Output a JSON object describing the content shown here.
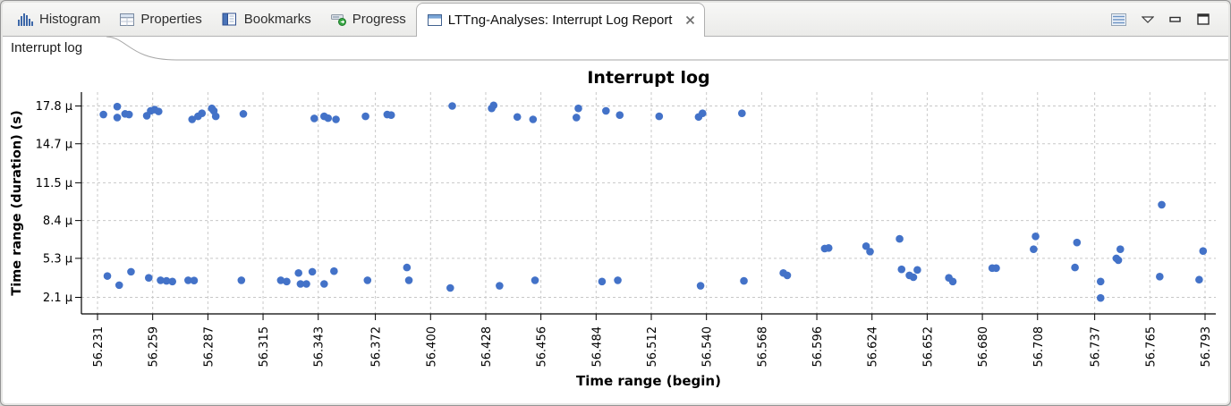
{
  "window": {
    "tabs": [
      {
        "label": "Histogram",
        "icon": "histogram-icon"
      },
      {
        "label": "Properties",
        "icon": "properties-icon"
      },
      {
        "label": "Bookmarks",
        "icon": "bookmarks-icon"
      },
      {
        "label": "Progress",
        "icon": "progress-icon"
      },
      {
        "label": "LTTng-Analyses: Interrupt Log Report",
        "icon": "window-icon",
        "active": true,
        "closable": true
      }
    ],
    "toolbar": {
      "icons": [
        "list-view-icon",
        "view-menu-icon",
        "minimize-icon",
        "maximize-icon"
      ]
    }
  },
  "subtabs": [
    {
      "label": "Interrupt log",
      "active": true
    }
  ],
  "chart_data": {
    "type": "scatter",
    "title": "Interrupt log",
    "xlabel": "Time range (begin)",
    "ylabel": "Time range (duration) (s)",
    "x_unit": "s",
    "y_unit": "µs",
    "xlim": [
      56.223,
      56.799
    ],
    "ylim_us": [
      0.74,
      18.94
    ],
    "grid": true,
    "legend": false,
    "colors": {
      "point": "#4372c8",
      "grid": "#c8c8c8",
      "axis": "#000000"
    },
    "x_ticks": [
      {
        "v": 56.231,
        "label": "56.231"
      },
      {
        "v": 56.259,
        "label": "56.259"
      },
      {
        "v": 56.287,
        "label": "56.287"
      },
      {
        "v": 56.315,
        "label": "56.315"
      },
      {
        "v": 56.343,
        "label": "56.343"
      },
      {
        "v": 56.372,
        "label": "56.372"
      },
      {
        "v": 56.4,
        "label": "56.400"
      },
      {
        "v": 56.428,
        "label": "56.428"
      },
      {
        "v": 56.456,
        "label": "56.456"
      },
      {
        "v": 56.484,
        "label": "56.484"
      },
      {
        "v": 56.512,
        "label": "56.512"
      },
      {
        "v": 56.54,
        "label": "56.540"
      },
      {
        "v": 56.568,
        "label": "56.568"
      },
      {
        "v": 56.596,
        "label": "56.596"
      },
      {
        "v": 56.624,
        "label": "56.624"
      },
      {
        "v": 56.652,
        "label": "56.652"
      },
      {
        "v": 56.68,
        "label": "56.680"
      },
      {
        "v": 56.708,
        "label": "56.708"
      },
      {
        "v": 56.737,
        "label": "56.737"
      },
      {
        "v": 56.765,
        "label": "56.765"
      },
      {
        "v": 56.793,
        "label": "56.793"
      }
    ],
    "y_ticks": [
      {
        "v": 2.1,
        "label": "2.1 µ"
      },
      {
        "v": 5.3,
        "label": "5.3 µ"
      },
      {
        "v": 8.4,
        "label": "8.4 µ"
      },
      {
        "v": 11.5,
        "label": "11.5 µ"
      },
      {
        "v": 14.7,
        "label": "14.7 µ"
      },
      {
        "v": 17.8,
        "label": "17.8 µ"
      }
    ],
    "points_us": [
      [
        56.234,
        17.1
      ],
      [
        56.241,
        17.75
      ],
      [
        56.241,
        16.85
      ],
      [
        56.245,
        17.15
      ],
      [
        56.247,
        17.1
      ],
      [
        56.256,
        17.0
      ],
      [
        56.258,
        17.4
      ],
      [
        56.26,
        17.5
      ],
      [
        56.262,
        17.35
      ],
      [
        56.279,
        16.7
      ],
      [
        56.282,
        16.95
      ],
      [
        56.284,
        17.2
      ],
      [
        56.289,
        17.6
      ],
      [
        56.29,
        17.4
      ],
      [
        56.291,
        16.95
      ],
      [
        56.305,
        17.15
      ],
      [
        56.341,
        16.78
      ],
      [
        56.346,
        16.95
      ],
      [
        56.348,
        16.8
      ],
      [
        56.352,
        16.7
      ],
      [
        56.367,
        16.95
      ],
      [
        56.378,
        17.1
      ],
      [
        56.38,
        17.05
      ],
      [
        56.411,
        17.8
      ],
      [
        56.431,
        17.6
      ],
      [
        56.432,
        17.85
      ],
      [
        56.444,
        16.9
      ],
      [
        56.452,
        16.7
      ],
      [
        56.474,
        16.85
      ],
      [
        56.475,
        17.6
      ],
      [
        56.489,
        17.4
      ],
      [
        56.496,
        17.05
      ],
      [
        56.516,
        16.95
      ],
      [
        56.536,
        16.9
      ],
      [
        56.538,
        17.2
      ],
      [
        56.558,
        17.2
      ],
      [
        56.236,
        3.85
      ],
      [
        56.242,
        3.1
      ],
      [
        56.248,
        4.2
      ],
      [
        56.257,
        3.7
      ],
      [
        56.263,
        3.5
      ],
      [
        56.266,
        3.45
      ],
      [
        56.269,
        3.4
      ],
      [
        56.277,
        3.5
      ],
      [
        56.28,
        3.48
      ],
      [
        56.304,
        3.5
      ],
      [
        56.324,
        3.5
      ],
      [
        56.327,
        3.4
      ],
      [
        56.333,
        4.1
      ],
      [
        56.334,
        3.2
      ],
      [
        56.337,
        3.2
      ],
      [
        56.34,
        4.2
      ],
      [
        56.346,
        3.2
      ],
      [
        56.351,
        4.25
      ],
      [
        56.368,
        3.5
      ],
      [
        56.388,
        4.55
      ],
      [
        56.389,
        3.5
      ],
      [
        56.41,
        2.87
      ],
      [
        56.435,
        3.05
      ],
      [
        56.453,
        3.5
      ],
      [
        56.487,
        3.4
      ],
      [
        56.495,
        3.5
      ],
      [
        56.537,
        3.05
      ],
      [
        56.559,
        3.45
      ],
      [
        56.579,
        4.1
      ],
      [
        56.581,
        3.9
      ],
      [
        56.6,
        6.1
      ],
      [
        56.602,
        6.15
      ],
      [
        56.621,
        6.3
      ],
      [
        56.623,
        5.85
      ],
      [
        56.638,
        6.9
      ],
      [
        56.639,
        4.4
      ],
      [
        56.643,
        3.9
      ],
      [
        56.645,
        3.75
      ],
      [
        56.647,
        4.35
      ],
      [
        56.663,
        3.7
      ],
      [
        56.665,
        3.4
      ],
      [
        56.685,
        4.5
      ],
      [
        56.687,
        4.5
      ],
      [
        56.706,
        6.05
      ],
      [
        56.707,
        7.1
      ],
      [
        56.727,
        4.55
      ],
      [
        56.728,
        6.6
      ],
      [
        56.74,
        3.4
      ],
      [
        56.74,
        2.05
      ],
      [
        56.748,
        5.3
      ],
      [
        56.749,
        5.15
      ],
      [
        56.75,
        6.05
      ],
      [
        56.77,
        3.8
      ],
      [
        56.771,
        9.7
      ],
      [
        56.79,
        3.55
      ],
      [
        56.792,
        5.9
      ]
    ]
  }
}
